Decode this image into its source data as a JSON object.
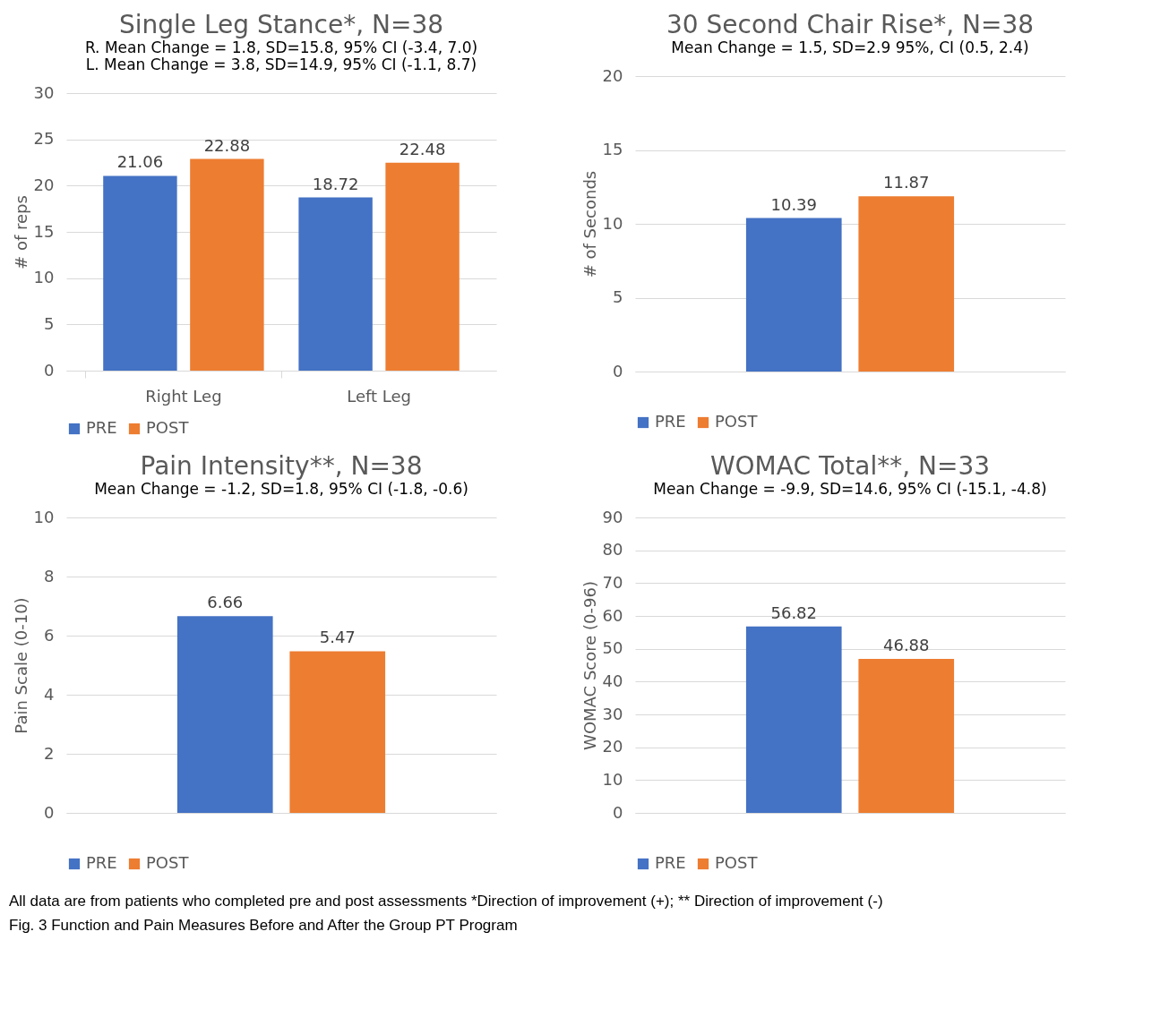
{
  "chart_data": [
    {
      "type": "bar",
      "title": "Single Leg Stance*, N=38",
      "subtitle": [
        "R. Mean Change = 1.8, SD=15.8, 95% CI (-3.4, 7.0)",
        "L. Mean Change = 3.8, SD=14.9, 95% CI (-1.1, 8.7)"
      ],
      "ylabel": "# of reps",
      "categories": [
        "Right Leg",
        "Left Leg"
      ],
      "series": [
        {
          "name": "PRE",
          "color": "#4472c4",
          "values": [
            21.06,
            18.72
          ]
        },
        {
          "name": "POST",
          "color": "#ed7d31",
          "values": [
            22.88,
            22.48
          ]
        }
      ],
      "ylim": [
        0,
        30
      ],
      "yticks": [
        0,
        5,
        10,
        15,
        20,
        25,
        30
      ],
      "grid": "y",
      "legend": "bottom",
      "data_labels": true
    },
    {
      "type": "bar",
      "title": "30 Second Chair Rise*, N=38",
      "subtitle": [
        "Mean Change = 1.5, SD=2.9 95%, CI (0.5, 2.4)"
      ],
      "ylabel": "# of Seconds",
      "categories": [
        null
      ],
      "series": [
        {
          "name": "PRE",
          "color": "#4472c4",
          "values": [
            10.39
          ]
        },
        {
          "name": "POST",
          "color": "#ed7d31",
          "values": [
            11.87
          ]
        }
      ],
      "ylim": [
        0,
        20
      ],
      "yticks": [
        0,
        5,
        10,
        15,
        20
      ],
      "grid": "y",
      "legend": "bottom",
      "data_labels": true
    },
    {
      "type": "bar",
      "title": "Pain Intensity**, N=38",
      "subtitle": [
        "Mean Change = -1.2, SD=1.8, 95% CI (-1.8, -0.6)"
      ],
      "ylabel": "Pain Scale (0-10)",
      "categories": [
        null
      ],
      "series": [
        {
          "name": "PRE",
          "color": "#4472c4",
          "values": [
            6.66
          ]
        },
        {
          "name": "POST",
          "color": "#ed7d31",
          "values": [
            5.47
          ]
        }
      ],
      "ylim": [
        0,
        10
      ],
      "yticks": [
        0,
        2,
        4,
        6,
        8,
        10
      ],
      "grid": "y",
      "legend": "bottom",
      "data_labels": true
    },
    {
      "type": "bar",
      "title": "WOMAC Total**, N=33",
      "subtitle": [
        "Mean Change = -9.9, SD=14.6, 95% CI (-15.1, -4.8)"
      ],
      "ylabel": "WOMAC Score (0-96)",
      "categories": [
        null
      ],
      "series": [
        {
          "name": "PRE",
          "color": "#4472c4",
          "values": [
            56.82
          ]
        },
        {
          "name": "POST",
          "color": "#ed7d31",
          "values": [
            46.88
          ]
        }
      ],
      "ylim": [
        0,
        90
      ],
      "yticks": [
        0,
        10,
        20,
        30,
        40,
        50,
        60,
        70,
        80,
        90
      ],
      "grid": "y",
      "legend": "bottom",
      "data_labels": true,
      "annotations": [
        "All data are from patients who completed pre and post assessments   *Direction of improvement (+); ** Direction of improvement (-)",
        "Fig. 3 Function and Pain Measures Before and After the Group PT Program"
      ]
    }
  ]
}
